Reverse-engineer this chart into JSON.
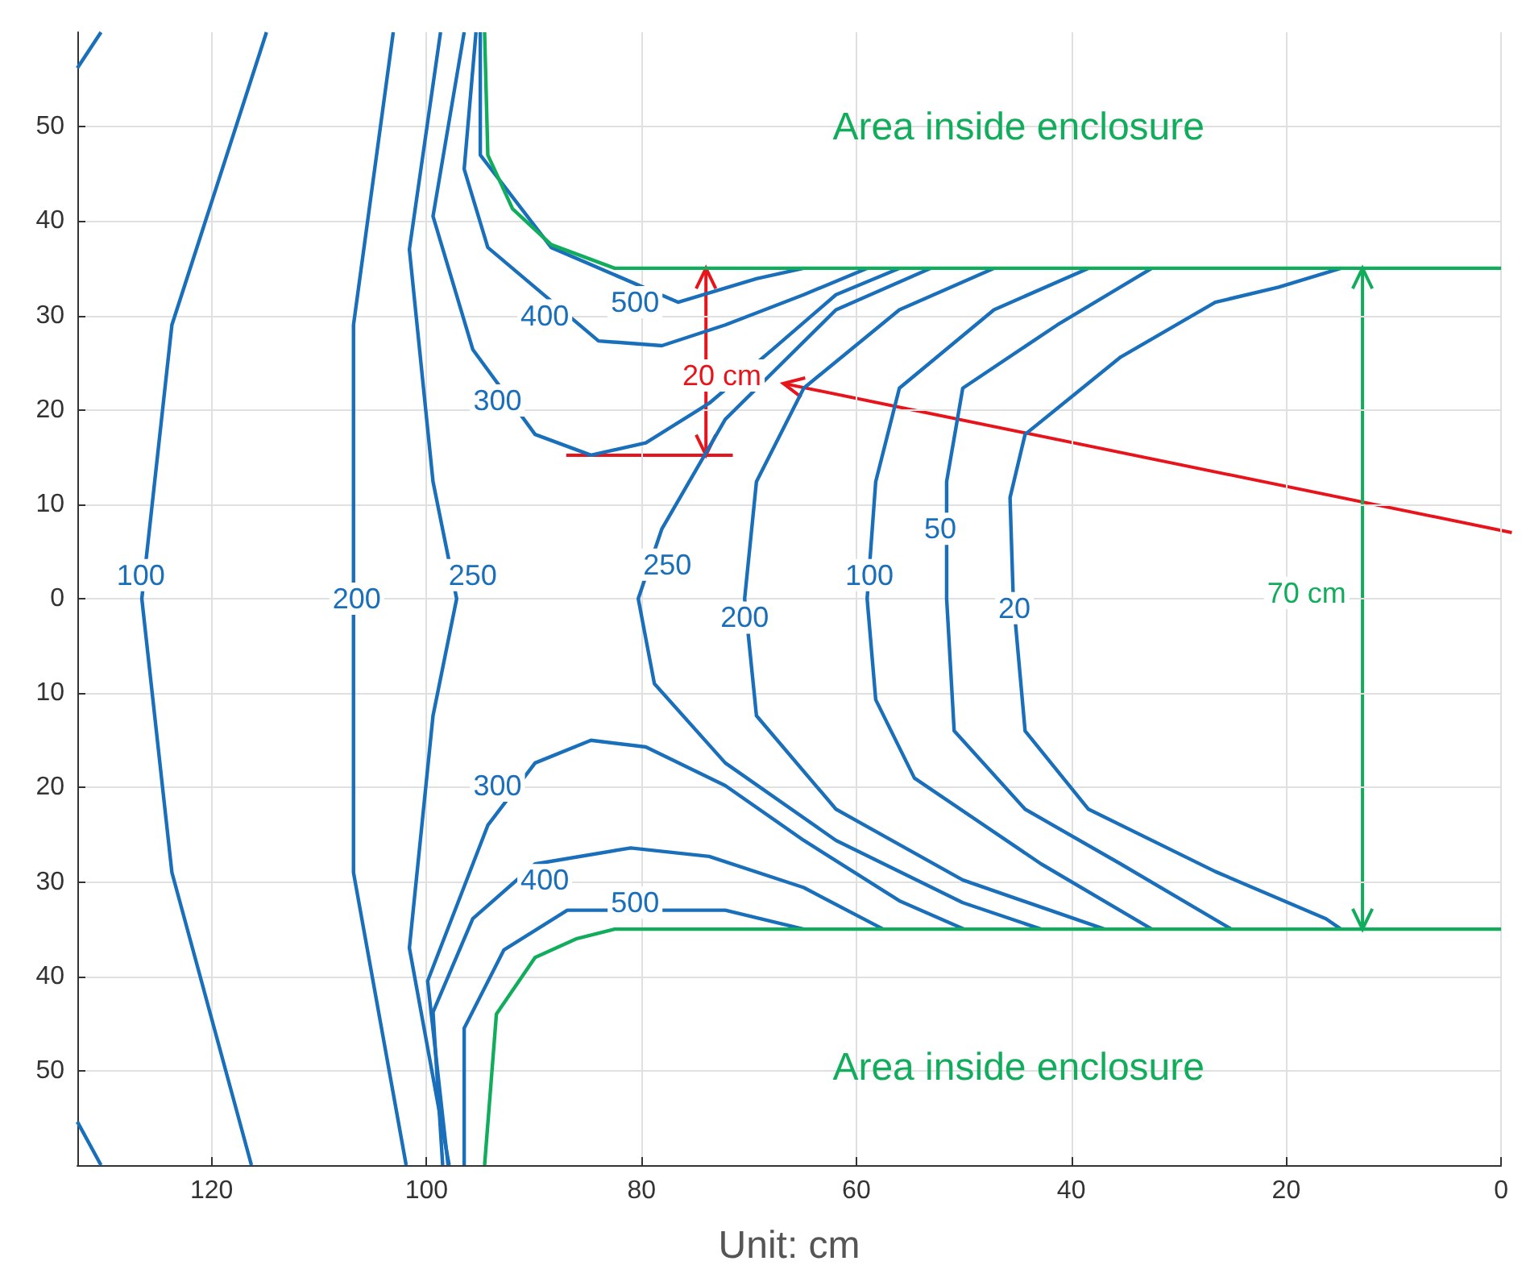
{
  "chart_data": {
    "type": "line",
    "xlabel": "Unit: cm",
    "xlim": [
      132.5,
      0
    ],
    "xticks": [
      120,
      100,
      80,
      60,
      40,
      20,
      0
    ],
    "ylim": [
      -60,
      60
    ],
    "yticks": [
      {
        "value": -50,
        "label": "50"
      },
      {
        "value": -40,
        "label": "40"
      },
      {
        "value": -30,
        "label": "30"
      },
      {
        "value": -20,
        "label": "20"
      },
      {
        "value": -10,
        "label": "10"
      },
      0,
      10,
      20,
      30,
      40,
      50
    ],
    "grid": true,
    "series": [
      {
        "color": "#1a6fba",
        "x": [
          132.5,
          130.3
        ],
        "values": [
          56.2,
          60
        ]
      },
      {
        "color": "#1a6fba",
        "x": [
          132.5,
          130.3
        ],
        "values": [
          -55.4,
          -60
        ]
      },
      {
        "color": "#1a6fba",
        "x": [
          114.9,
          123.7,
          126.5,
          123.7,
          116.3
        ],
        "values": [
          60,
          29,
          0,
          -29,
          -60
        ]
      },
      {
        "color": "#1a6fba",
        "x": [
          103.1,
          106.8,
          106.8,
          101.9
        ],
        "values": [
          60,
          29,
          -29,
          -60
        ]
      },
      {
        "color": "#1a6fba",
        "x": [
          98.7,
          101.6,
          99.4,
          97.2,
          99.4,
          101.6,
          97.9
        ],
        "values": [
          60,
          37,
          12.4,
          0,
          -12.4,
          -37,
          -60
        ]
      },
      {
        "color": "#1a6fba",
        "x": [
          96.5,
          99.4,
          95.7,
          89.9,
          84.7,
          79.6,
          73.7,
          67.8,
          61.9,
          56
        ],
        "values": [
          60,
          40.5,
          26.4,
          17.4,
          15.2,
          16.5,
          20.7,
          26.4,
          32.2,
          35
        ]
      },
      {
        "color": "#1a6fba",
        "x": [
          98,
          99.9,
          94.3,
          89.9,
          84.7,
          79.6,
          72.2,
          64.9,
          56,
          50
        ],
        "values": [
          -60,
          -40.5,
          -24,
          -17.4,
          -15,
          -15.7,
          -19.8,
          -25.6,
          -32,
          -35
        ]
      },
      {
        "color": "#1a6fba",
        "x": [
          95.4,
          96.5,
          94.3,
          84,
          78.1,
          72.2,
          64.9,
          59
        ],
        "values": [
          60,
          45.5,
          37.2,
          27.3,
          26.8,
          29,
          32.2,
          35
        ]
      },
      {
        "color": "#1a6fba",
        "x": [
          95,
          95,
          88.4,
          76.6,
          69.3,
          64.9
        ],
        "values": [
          60,
          47,
          37.2,
          31.4,
          33.9,
          35
        ]
      },
      {
        "color": "#1a6fba",
        "x": [
          98.5,
          99.4,
          95.7,
          89.9,
          81,
          73.7,
          64.9,
          57.5
        ],
        "values": [
          -60,
          -43.8,
          -33.9,
          -28.1,
          -26.4,
          -27.3,
          -30.6,
          -35
        ]
      },
      {
        "color": "#1a6fba",
        "x": [
          96.5,
          96.5,
          92.8,
          86.9,
          72.2,
          64.9
        ],
        "values": [
          -60,
          -45.5,
          -37.2,
          -33,
          -33,
          -35
        ]
      },
      {
        "color": "#1a6fba",
        "x": [
          53.1,
          61.9,
          72.2,
          78.1,
          80.3,
          78.8,
          72.2,
          61.9,
          50.1,
          42.8
        ],
        "values": [
          35,
          30.6,
          19,
          7.4,
          0,
          -9,
          -17.4,
          -25.6,
          -32.2,
          -35
        ]
      },
      {
        "color": "#1a6fba",
        "x": [
          47.2,
          56,
          64.9,
          69.3,
          70.4,
          69.3,
          61.9,
          50.1,
          36.9
        ],
        "values": [
          35,
          30.6,
          22.3,
          12.4,
          0,
          -12.4,
          -22.3,
          -29.8,
          -35
        ]
      },
      {
        "color": "#1a6fba",
        "x": [
          38.4,
          47.2,
          56,
          58.2,
          59,
          58.2,
          54.6,
          42.8,
          32.5
        ],
        "values": [
          35,
          30.6,
          22.3,
          12.4,
          0,
          -10.7,
          -19,
          -28.1,
          -35
        ]
      },
      {
        "color": "#1a6fba",
        "x": [
          32.5,
          41.3,
          50.1,
          51.6,
          51.6,
          50.9,
          44.3,
          35.4,
          25.1
        ],
        "values": [
          35,
          29,
          22.3,
          12.4,
          0,
          -14,
          -22.3,
          -28.1,
          -35
        ]
      },
      {
        "color": "#1a6fba",
        "x": [
          14.9,
          20.7,
          26.6,
          35.4,
          44.3,
          45.7,
          45.4,
          44.3,
          38.4,
          26.6,
          16.3,
          14.9
        ],
        "values": [
          35,
          33,
          31.4,
          25.6,
          17.4,
          10.7,
          0,
          -14,
          -22.3,
          -28.9,
          -33.9,
          -35
        ]
      },
      {
        "color": "#12ad5c",
        "x": [
          94.6,
          94.3,
          92,
          88.4,
          82.5,
          0
        ],
        "values": [
          60,
          47,
          41.3,
          37.5,
          35,
          35
        ]
      },
      {
        "color": "#12ad5c",
        "x": [
          94.6,
          93.5,
          89.9,
          86,
          82.5,
          0
        ],
        "values": [
          -60,
          -44,
          -38,
          -36,
          -35,
          -35
        ]
      }
    ],
    "annotations": [
      {
        "text": "100",
        "x": 126.6,
        "y": 2.5
      },
      {
        "text": "200",
        "x": 106.5,
        "y": 0
      },
      {
        "text": "250",
        "x": 95.7,
        "y": 2.5
      },
      {
        "text": "300",
        "x": 93.4,
        "y": 21
      },
      {
        "text": "400",
        "x": 89,
        "y": 30
      },
      {
        "text": "500",
        "x": 80.6,
        "y": 31.4
      },
      {
        "text": "300",
        "x": 93.4,
        "y": -19.8
      },
      {
        "text": "400",
        "x": 89,
        "y": -29.8
      },
      {
        "text": "500",
        "x": 80.6,
        "y": -32.2
      },
      {
        "text": "250",
        "x": 77.6,
        "y": 3.6
      },
      {
        "text": "200",
        "x": 70.4,
        "y": -2
      },
      {
        "text": "100",
        "x": 58.8,
        "y": 2.5
      },
      {
        "text": "50",
        "x": 52.2,
        "y": 7.4
      },
      {
        "text": "20",
        "x": 45.3,
        "y": -1
      },
      "Area inside enclosure",
      "Area inside enclosure",
      "20 cm",
      "70 cm"
    ]
  }
}
